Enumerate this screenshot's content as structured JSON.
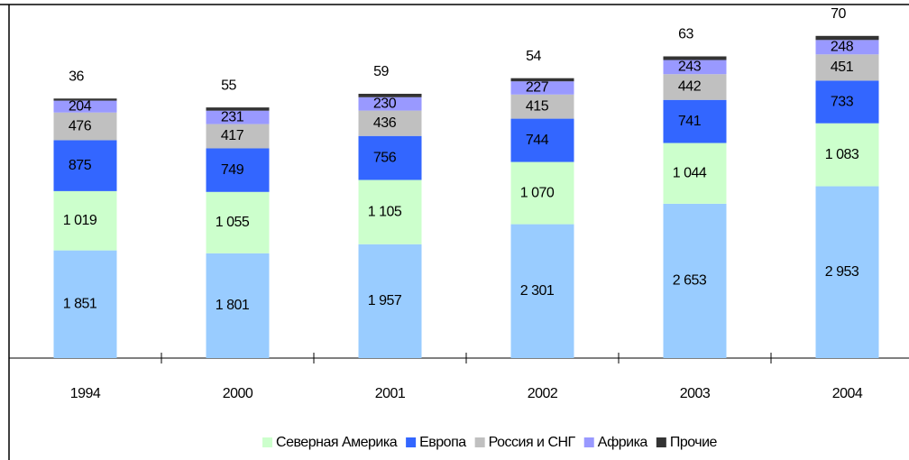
{
  "chart_data": {
    "type": "stacked_bar",
    "categories": [
      "1994",
      "2000",
      "2001",
      "2002",
      "2003",
      "2004"
    ],
    "series": [
      {
        "name": null,
        "color": "#99ccff",
        "values": [
          1851,
          1801,
          1957,
          2301,
          2653,
          2953
        ],
        "value_labels": [
          "1 851",
          "1 801",
          "1 957",
          "2 301",
          "2 653",
          "2 953"
        ]
      },
      {
        "name": "Северная Америка",
        "color": "#ccffcc",
        "values": [
          1019,
          1055,
          1105,
          1070,
          1044,
          1083
        ],
        "value_labels": [
          "1 019",
          "1 055",
          "1 105",
          "1 070",
          "1 044",
          "1 083"
        ]
      },
      {
        "name": "Европа",
        "color": "#3366ff",
        "values": [
          875,
          749,
          756,
          744,
          741,
          733
        ],
        "value_labels": [
          "875",
          "749",
          "756",
          "744",
          "741",
          "733"
        ]
      },
      {
        "name": "Россия и СНГ",
        "color": "#c0c0c0",
        "values": [
          476,
          417,
          436,
          415,
          442,
          451
        ],
        "value_labels": [
          "476",
          "417",
          "436",
          "415",
          "442",
          "451"
        ]
      },
      {
        "name": "Африка",
        "color": "#9999ff",
        "values": [
          204,
          231,
          230,
          227,
          243,
          248
        ],
        "value_labels": [
          "204",
          "231",
          "230",
          "227",
          "243",
          "248"
        ]
      },
      {
        "name": "Прочие",
        "color": "#333333",
        "values": [
          36,
          55,
          59,
          54,
          63,
          70
        ],
        "value_labels": [
          "36",
          "55",
          "59",
          "54",
          "63",
          "70"
        ]
      }
    ],
    "ylim": [
      0,
      6000
    ]
  }
}
